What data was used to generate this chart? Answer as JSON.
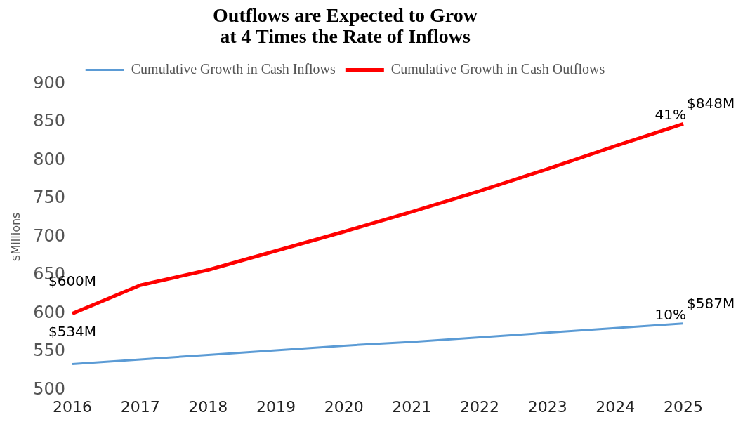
{
  "chart_data": {
    "type": "line",
    "title": "Outflows are Expected to Grow\nat 4 Times the Rate of Inflows",
    "ylabel": "$Millions",
    "categories": [
      "2016",
      "2017",
      "2018",
      "2019",
      "2020",
      "2021",
      "2022",
      "2023",
      "2024",
      "2025"
    ],
    "series": [
      {
        "name": "Cumulative Growth in Cash Inflows",
        "color": "#5b9bd5",
        "values": [
          534,
          540,
          546,
          552,
          558,
          563,
          569,
          575,
          581,
          587
        ]
      },
      {
        "name": "Cumulative Growth in Cash Outflows",
        "color": "#ff0000",
        "values": [
          600,
          637,
          657,
          682,
          707,
          733,
          760,
          789,
          819,
          848
        ]
      }
    ],
    "ylim": [
      500,
      900
    ],
    "yticks": [
      500,
      550,
      600,
      650,
      700,
      750,
      800,
      850,
      900
    ],
    "grid": false,
    "legend": "top",
    "marker": "none",
    "line_style": "solid",
    "annotations": [
      {
        "text": "$534M",
        "x": "2016",
        "y": 534
      },
      {
        "text": "$600M",
        "x": "2016",
        "y": 600
      },
      {
        "text": "$587M",
        "x": "2025",
        "y": 587
      },
      {
        "text": "10%",
        "x": "2025",
        "y": 587
      },
      {
        "text": "$848M",
        "x": "2025",
        "y": 848
      },
      {
        "text": "41%",
        "x": "2025",
        "y": 848
      }
    ]
  }
}
